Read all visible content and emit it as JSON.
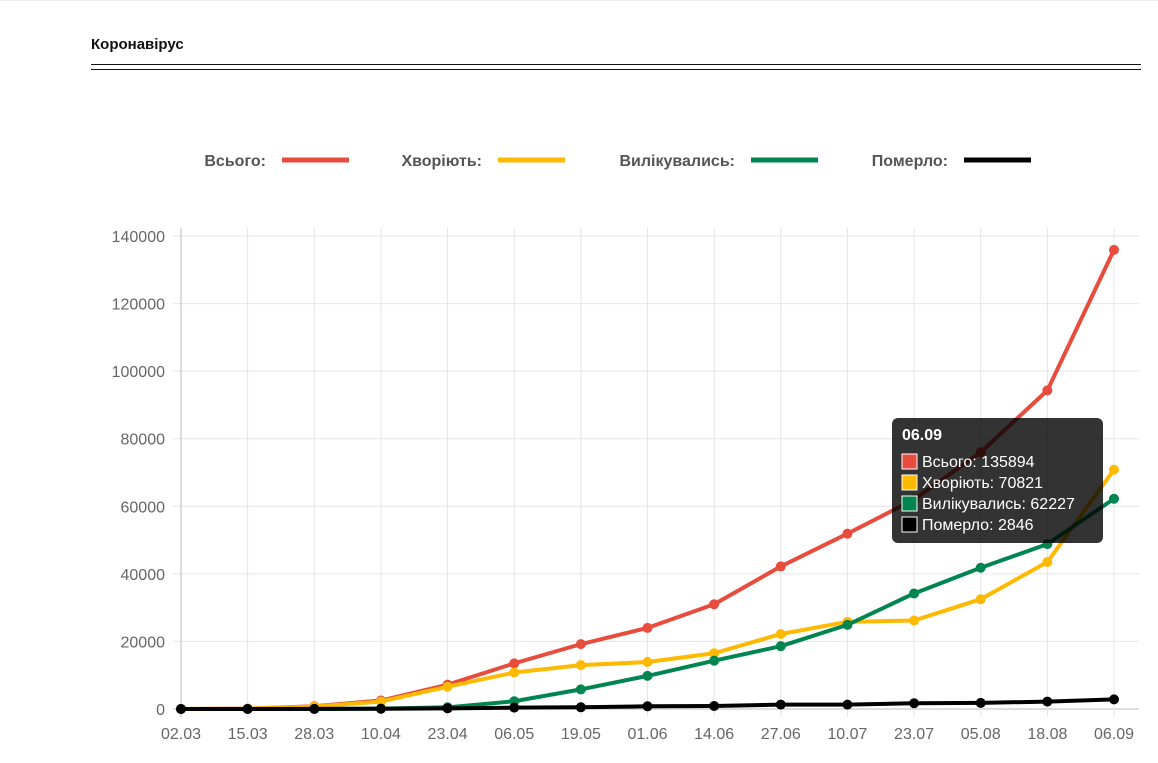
{
  "page": {
    "title": "Коронавірус"
  },
  "chart_data": {
    "type": "line",
    "categories": [
      "02.03",
      "15.03",
      "28.03",
      "10.04",
      "23.04",
      "06.05",
      "19.05",
      "01.06",
      "14.06",
      "27.06",
      "10.07",
      "23.07",
      "05.08",
      "18.08",
      "06.09"
    ],
    "ylim": [
      0,
      140000
    ],
    "yticks": [
      0,
      20000,
      40000,
      60000,
      80000,
      100000,
      120000,
      140000
    ],
    "grid": true,
    "legend_position": "top",
    "series": [
      {
        "name": "Всього",
        "color": "#e74c3c",
        "values": [
          0,
          100,
          800,
          2500,
          7200,
          13500,
          19200,
          24000,
          31000,
          42200,
          51900,
          62000,
          76000,
          94300,
          135894
        ]
      },
      {
        "name": "Хворіють",
        "color": "#ffb900",
        "values": [
          0,
          100,
          700,
          2200,
          6600,
          10800,
          13000,
          13900,
          16500,
          22200,
          25800,
          26200,
          32500,
          43500,
          70821
        ]
      },
      {
        "name": "Вилікувались",
        "color": "#008550",
        "values": [
          0,
          0,
          0,
          100,
          500,
          2300,
          5800,
          9800,
          14300,
          18600,
          24900,
          34200,
          41800,
          48800,
          62227
        ]
      },
      {
        "name": "Померло",
        "color": "#000000",
        "values": [
          0,
          0,
          20,
          80,
          200,
          400,
          500,
          800,
          900,
          1300,
          1300,
          1700,
          1800,
          2200,
          2846
        ]
      }
    ],
    "tooltip": {
      "title": "06.09",
      "lines": [
        "Всього: 135894",
        "Хворіють: 70821",
        "Вилікувались: 62227",
        "Померло: 2846"
      ]
    }
  }
}
